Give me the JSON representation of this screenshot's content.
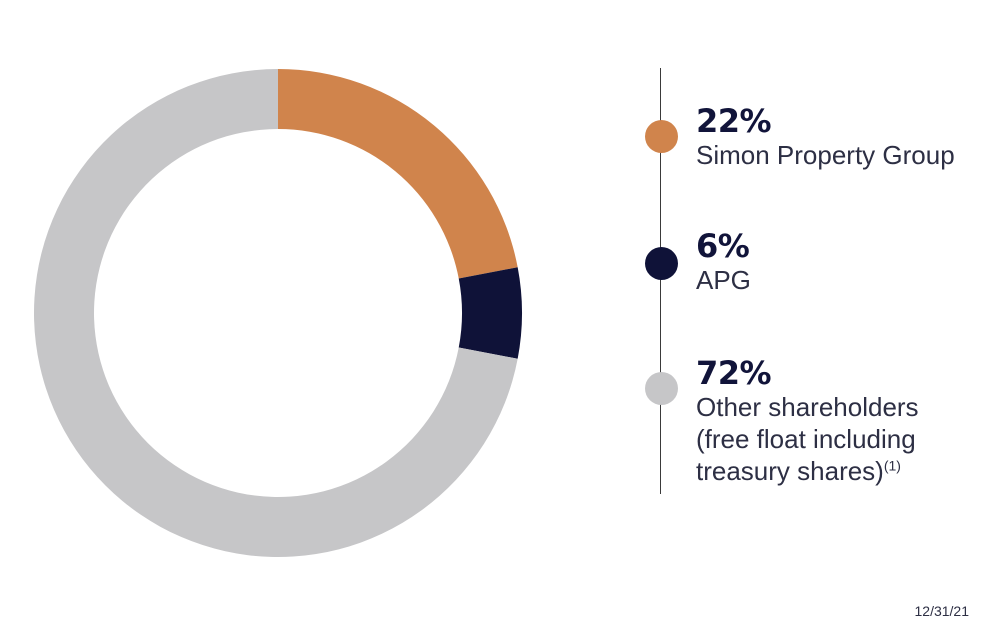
{
  "chart_data": {
    "type": "pie",
    "style": "donut",
    "categories": [
      "Simon Property Group",
      "APG",
      "Other shareholders (free float including treasury shares)"
    ],
    "values": [
      22,
      6,
      72
    ],
    "colors": [
      "#d0844c",
      "#0f1238",
      "#c6c6c8"
    ],
    "unit": "%",
    "legend_placement": "right"
  },
  "legend": {
    "items": [
      {
        "pct": "22%",
        "label": "Simon Property Group",
        "color": "#d0844c"
      },
      {
        "pct": "6%",
        "label": "APG",
        "color": "#0f1238"
      },
      {
        "pct": "72%",
        "label_lines": [
          "Other shareholders",
          "(free float including",
          "treasury shares)"
        ],
        "footnote": "(1)",
        "color": "#c6c6c8"
      }
    ]
  },
  "date": "12/31/21"
}
